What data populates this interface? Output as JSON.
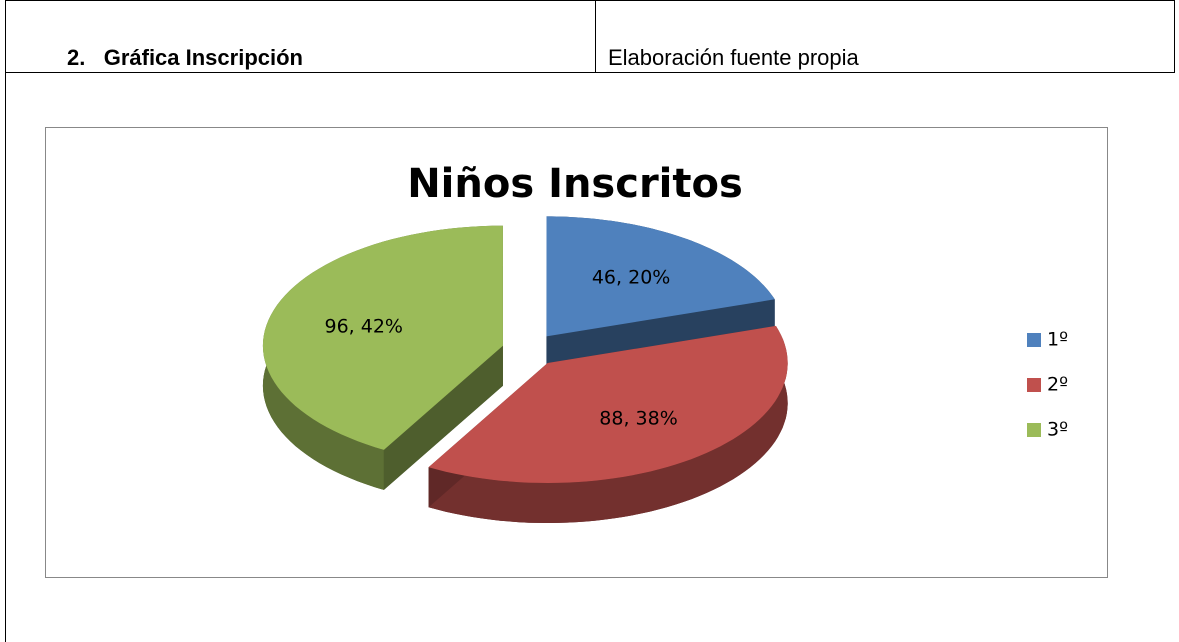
{
  "table": {
    "number": "2.",
    "title": "Gráfica Inscripción",
    "source": "Elaboración fuente propia"
  },
  "chart_data": {
    "type": "pie",
    "title": "Niños Inscritos",
    "categories": [
      "1º",
      "2º",
      "3º"
    ],
    "values": [
      46,
      88,
      96
    ],
    "value_labels": [
      "46, 20%",
      "88, 38%",
      "96, 42%"
    ],
    "colors": [
      "#4f81bd",
      "#c0504d",
      "#9bbb59"
    ],
    "legend": "right"
  }
}
